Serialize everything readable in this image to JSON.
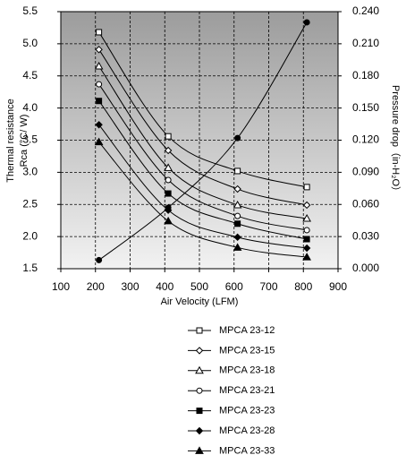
{
  "chart_data": {
    "type": "line",
    "x_label": "Air Velocity (LFM)",
    "y_label": [
      "Thermal resistance",
      "Rca (°C/ W)"
    ],
    "y2_label": "Pressure drop（in-H₂O）",
    "x": [
      210,
      410,
      610,
      810
    ],
    "xlim": [
      100,
      900
    ],
    "xticks": [
      100,
      200,
      300,
      400,
      500,
      600,
      700,
      800,
      900
    ],
    "ylim": [
      1.5,
      5.5
    ],
    "yticks": [
      1.5,
      {
        "value": 2,
        "label": "2.0"
      },
      2.5,
      {
        "value": 3,
        "label": "3.0"
      },
      3.5,
      {
        "value": 4,
        "label": "4.0"
      },
      4.5,
      {
        "value": 5,
        "label": "5.0"
      },
      5.5
    ],
    "y2lim": [
      0,
      0.24
    ],
    "y2ticks": [
      {
        "value": 0,
        "label": "0.000"
      },
      {
        "value": 0.03,
        "label": "0.030"
      },
      {
        "value": 0.06,
        "label": "0.060"
      },
      {
        "value": 0.09,
        "label": "0.090"
      },
      {
        "value": 0.12,
        "label": "0.120"
      },
      {
        "value": 0.15,
        "label": "0.150"
      },
      {
        "value": 0.18,
        "label": "0.180"
      },
      {
        "value": 0.21,
        "label": "0.210"
      },
      {
        "value": 0.24,
        "label": "0.240"
      }
    ],
    "grid": true,
    "legend": "bottom",
    "series": [
      {
        "name": "MPCA 23-12",
        "color": "#000000",
        "marker": "square-open",
        "values": [
          5.18,
          3.56,
          3.02,
          2.77
        ]
      },
      {
        "name": "MPCA 23-15",
        "color": "#000000",
        "marker": "diamond-open",
        "values": [
          4.91,
          3.34,
          2.74,
          2.49
        ]
      },
      {
        "name": "MPCA 23-18",
        "color": "#000000",
        "marker": "triangle-open",
        "values": [
          4.65,
          3.07,
          2.49,
          2.28
        ]
      },
      {
        "name": "MPCA 23-21",
        "color": "#000000",
        "marker": "circle-open",
        "values": [
          4.37,
          2.88,
          2.32,
          2.1
        ]
      },
      {
        "name": "MPCA 23-23",
        "color": "#000000",
        "marker": "square",
        "values": [
          4.11,
          2.67,
          2.2,
          1.96
        ]
      },
      {
        "name": "MPCA 23-28",
        "color": "#000000",
        "marker": "diamond",
        "values": [
          3.74,
          2.41,
          1.99,
          1.82
        ]
      },
      {
        "name": "MPCA 23-33",
        "color": "#000000",
        "marker": "triangle",
        "values": [
          3.47,
          2.24,
          1.83,
          1.68
        ]
      },
      {
        "color": "#000000",
        "marker": "circle",
        "axis": "y2",
        "values": [
          0.008,
          0.057,
          0.122,
          0.23
        ]
      }
    ]
  }
}
